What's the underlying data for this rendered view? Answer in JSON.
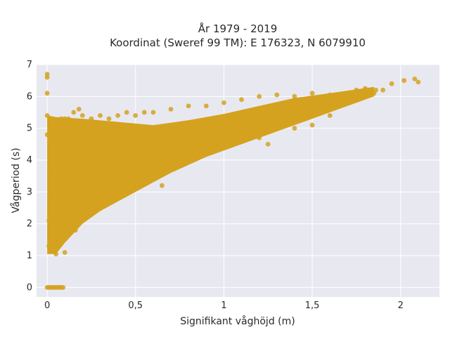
{
  "chart_data": {
    "type": "scatter",
    "title_lines": [
      "År 1979 - 2019",
      "Koordinat (Sweref 99 TM): E 176323, N 6079910"
    ],
    "xlabel": "Signifikant våghöjd (m)",
    "ylabel": "Vågperiod (s)",
    "xlim": [
      -0.06,
      2.22
    ],
    "ylim": [
      -0.3,
      7.0
    ],
    "x_ticks": [
      0,
      0.5,
      1,
      1.5,
      2
    ],
    "x_tick_labels": [
      "0",
      "0,5",
      "1",
      "1,5",
      "2"
    ],
    "y_ticks": [
      0,
      1,
      2,
      3,
      4,
      5,
      6,
      7
    ],
    "y_tick_labels": [
      "0",
      "1",
      "2",
      "3",
      "4",
      "5",
      "6",
      "7"
    ],
    "grid": true,
    "marker_color": "#d4a21f",
    "background_color": "#e8e8f1",
    "series": [
      {
        "x": [
          0.0,
          0.01,
          0.02,
          0.03,
          0.04,
          0.05,
          0.06,
          0.07,
          0.08,
          0.09,
          0.0,
          0.0,
          0.0,
          0.0,
          0.0,
          0.01,
          0.01,
          0.02,
          0.03,
          0.05,
          0.08,
          0.1,
          0.12,
          0.15,
          0.18,
          0.2,
          0.25,
          0.3,
          0.35,
          0.4,
          0.45,
          0.5,
          0.55,
          0.6,
          0.7,
          0.8,
          0.9,
          1.0,
          1.1,
          1.2,
          1.3,
          1.4,
          1.5,
          1.6,
          1.7,
          1.75,
          1.8,
          1.85,
          1.9,
          1.95,
          2.02,
          2.08,
          2.1,
          1.86,
          1.25,
          0.43,
          0.1,
          0.16,
          0.65,
          0.05,
          0.02,
          0.05,
          0.1,
          0.15,
          0.2,
          0.3,
          0.4,
          0.5,
          0.6,
          0.8,
          1.0,
          1.2,
          1.4,
          1.5,
          1.6,
          0.08,
          0.12,
          0.03,
          0.06,
          0.25,
          0.35,
          0.45,
          0.55,
          0.75,
          0.9,
          1.1,
          1.3,
          1.45,
          1.55,
          1.65,
          1.7,
          1.8,
          0.02,
          0.04,
          0.07,
          0.09,
          0.11,
          0.13,
          0.17,
          0.22
        ],
        "y": [
          0.0,
          0.0,
          0.0,
          0.0,
          0.0,
          0.0,
          0.0,
          0.0,
          0.0,
          0.0,
          6.7,
          6.6,
          6.1,
          5.4,
          4.8,
          1.3,
          2.1,
          3.2,
          4.5,
          5.2,
          5.3,
          5.3,
          5.3,
          5.5,
          5.6,
          5.4,
          5.3,
          5.4,
          5.3,
          5.4,
          5.5,
          5.4,
          5.5,
          5.5,
          5.6,
          5.7,
          5.7,
          5.8,
          5.9,
          6.0,
          6.05,
          6.0,
          6.1,
          6.05,
          6.1,
          6.2,
          6.25,
          6.1,
          6.2,
          6.4,
          6.5,
          6.55,
          6.45,
          6.2,
          4.5,
          4.8,
          1.1,
          1.8,
          3.2,
          1.05,
          1.2,
          1.5,
          1.9,
          2.3,
          2.6,
          3.1,
          3.4,
          3.6,
          3.8,
          4.1,
          4.4,
          4.7,
          5.0,
          5.1,
          5.4,
          2.5,
          3.0,
          3.6,
          4.0,
          4.2,
          4.4,
          4.6,
          4.7,
          4.9,
          5.0,
          5.2,
          5.4,
          5.6,
          5.7,
          5.8,
          5.9,
          6.0,
          2.8,
          3.5,
          3.9,
          4.1,
          4.3,
          4.2,
          4.0,
          3.8
        ]
      }
    ]
  }
}
